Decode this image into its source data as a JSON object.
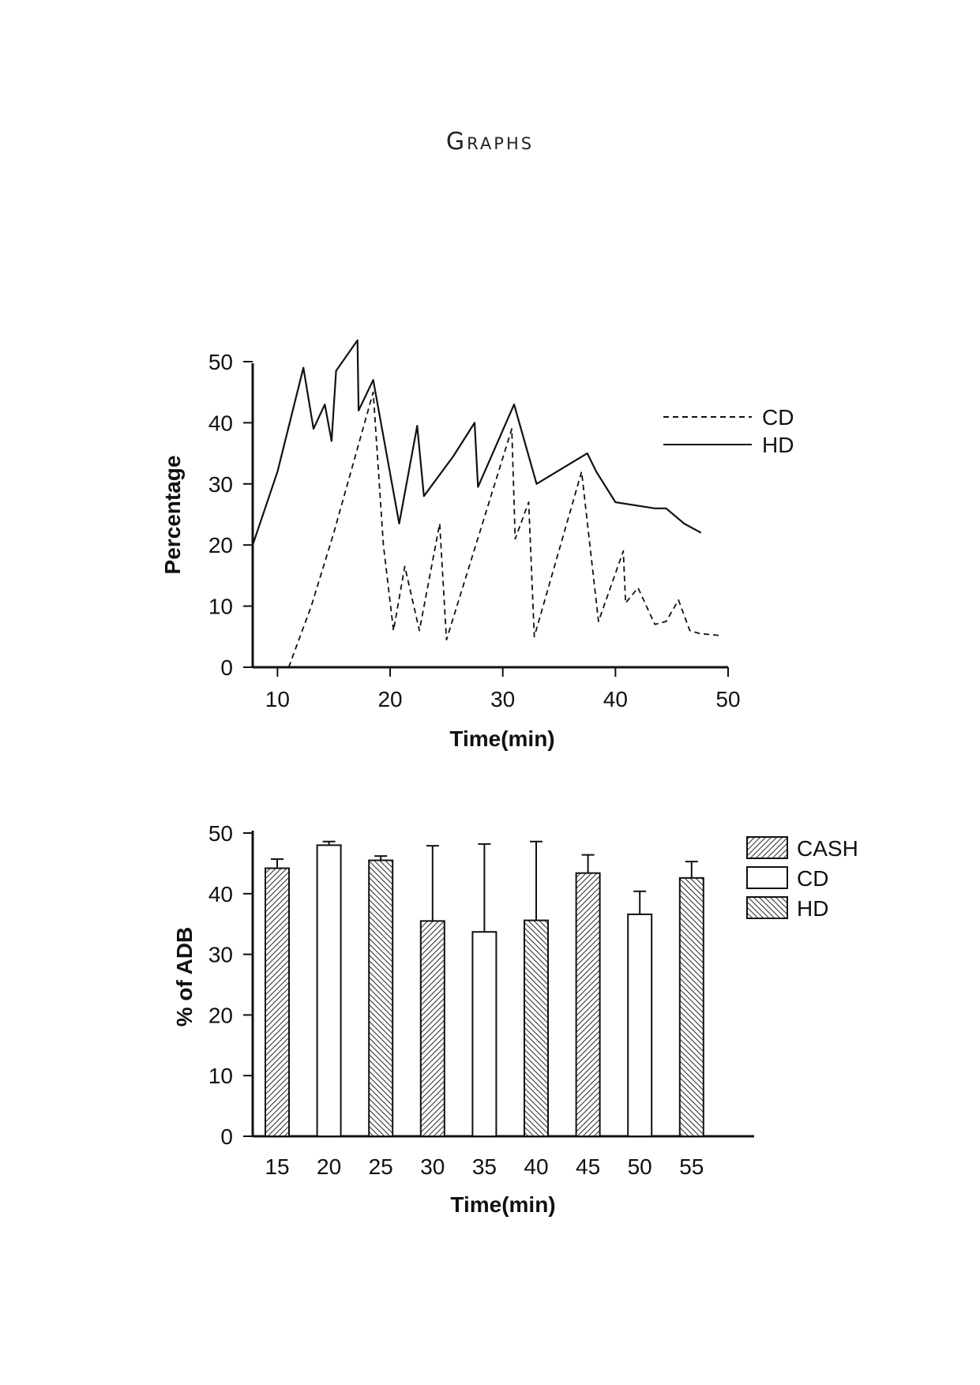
{
  "page": {
    "heading": "Graphs"
  },
  "chart_data": [
    {
      "type": "line",
      "xlabel": "Time(min)",
      "ylabel": "Percentage",
      "xlim": [
        7.8,
        50
      ],
      "ylim": [
        0,
        50
      ],
      "xticks": [
        10,
        20,
        30,
        40,
        50
      ],
      "yticks": [
        0,
        10,
        20,
        30,
        40,
        50
      ],
      "legend": "top-right",
      "series": [
        {
          "name": "CD",
          "style": "dashed",
          "color": "#111111",
          "points": [
            [
              11,
              0
            ],
            [
              13,
              10
            ],
            [
              15,
              22
            ],
            [
              18.5,
              45
            ],
            [
              19.4,
              20
            ],
            [
              20.3,
              6
            ],
            [
              21.3,
              16.5
            ],
            [
              22.6,
              6
            ],
            [
              24.4,
              23.5
            ],
            [
              25,
              4.5
            ],
            [
              30.8,
              39
            ],
            [
              31.1,
              21
            ],
            [
              32.3,
              27
            ],
            [
              32.8,
              5
            ],
            [
              37,
              32
            ],
            [
              38.5,
              7.5
            ],
            [
              40.7,
              19
            ],
            [
              40.9,
              10.5
            ],
            [
              42,
              13
            ],
            [
              43.5,
              7
            ],
            [
              44.5,
              7.5
            ],
            [
              45.6,
              11
            ],
            [
              46.6,
              6
            ],
            [
              47.5,
              5.5
            ],
            [
              49.3,
              5.2
            ]
          ]
        },
        {
          "name": "HD",
          "style": "solid",
          "color": "#111111",
          "points": [
            [
              7.8,
              20
            ],
            [
              10,
              32
            ],
            [
              12.3,
              49
            ],
            [
              13.2,
              39
            ],
            [
              14.2,
              43
            ],
            [
              14.8,
              37
            ],
            [
              15.2,
              48.5
            ],
            [
              17.1,
              53.5
            ],
            [
              17.2,
              42
            ],
            [
              18.5,
              47
            ],
            [
              20.8,
              23.5
            ],
            [
              22.4,
              39.5
            ],
            [
              23,
              28
            ],
            [
              25.6,
              34.5
            ],
            [
              27.5,
              40
            ],
            [
              27.8,
              29.5
            ],
            [
              31,
              43
            ],
            [
              33,
              30
            ],
            [
              37.5,
              35
            ],
            [
              38.3,
              32
            ],
            [
              40,
              27
            ],
            [
              43.5,
              26
            ],
            [
              44.5,
              26
            ],
            [
              46.1,
              23.5
            ],
            [
              47.6,
              22
            ]
          ]
        }
      ]
    },
    {
      "type": "bar",
      "xlabel": "Time(min)",
      "ylabel": "% of ADB",
      "ylim": [
        0,
        50
      ],
      "yticks": [
        0,
        10,
        20,
        30,
        40,
        50
      ],
      "categories": [
        "15",
        "20",
        "25",
        "30",
        "35",
        "40",
        "45",
        "50",
        "55"
      ],
      "values": [
        44.2,
        48,
        45.5,
        35.5,
        33.7,
        35.6,
        43.4,
        36.6,
        42.6
      ],
      "errors": [
        1.5,
        0.6,
        0.7,
        12.4,
        14.5,
        13,
        3,
        3.8,
        2.7
      ],
      "groups": [
        "CASH",
        "CD",
        "HD",
        "CASH",
        "CD",
        "HD",
        "CASH",
        "CD",
        "HD"
      ],
      "legend": "top-right",
      "series": [
        {
          "name": "CASH",
          "fill": "hatch-forward"
        },
        {
          "name": "CD",
          "fill": "plain"
        },
        {
          "name": "HD",
          "fill": "hatch-back"
        }
      ]
    }
  ]
}
